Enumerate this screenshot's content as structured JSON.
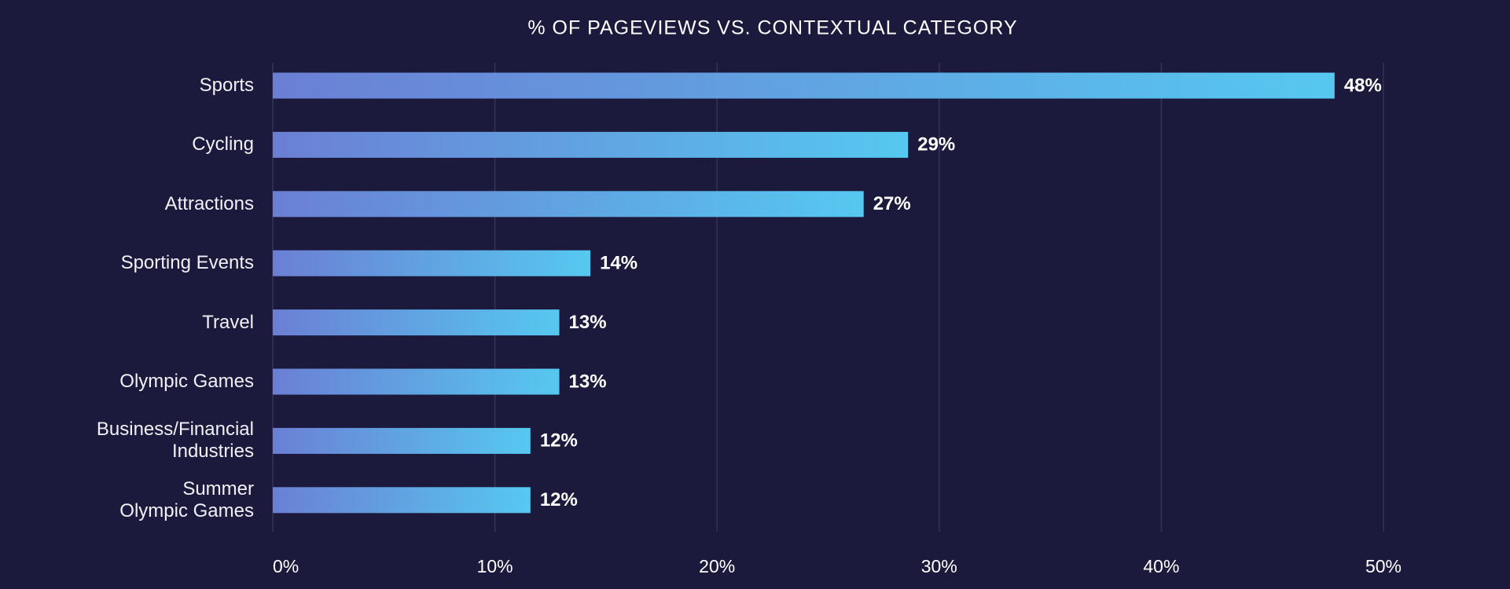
{
  "chart_data": {
    "type": "bar",
    "orientation": "horizontal",
    "title": "% OF PAGEVIEWS VS. CONTEXTUAL CATEGORY",
    "categories": [
      "Sports",
      "Cycling",
      "Attractions",
      "Sporting Events",
      "Travel",
      "Olympic Games",
      "Business/Financial\nIndustries",
      "Summer\nOlympic Games"
    ],
    "values": [
      47.8,
      28.6,
      26.6,
      14.3,
      12.9,
      12.9,
      11.6,
      11.6
    ],
    "value_labels": [
      "48%",
      "29%",
      "27%",
      "14%",
      "13%",
      "13%",
      "12%",
      "12%"
    ],
    "color": [
      "#6b7fd4",
      "#56c8f0"
    ],
    "xlim": [
      0,
      50
    ],
    "xticks": [
      {
        "value": 0,
        "label": "0%"
      },
      {
        "value": 10,
        "label": "10%"
      },
      {
        "value": 20,
        "label": "20%"
      },
      {
        "value": 30,
        "label": "30%"
      },
      {
        "value": 40,
        "label": "40%"
      },
      {
        "value": 50,
        "label": "50%"
      }
    ],
    "grid": true
  }
}
